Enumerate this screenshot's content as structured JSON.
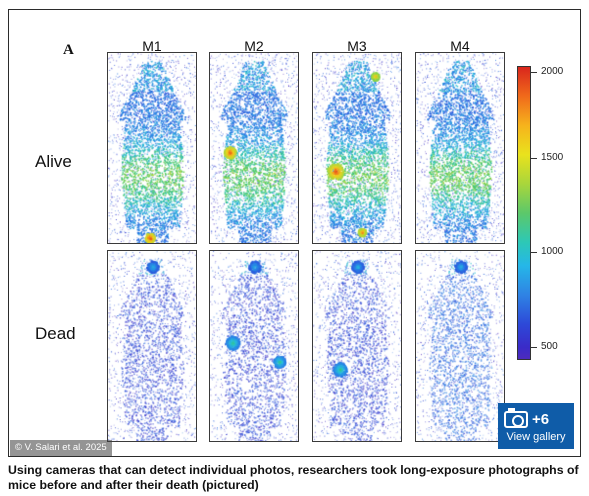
{
  "figure": {
    "panel_letter": "A",
    "columns": [
      "M1",
      "M2",
      "M3",
      "M4"
    ],
    "rows": [
      "Alive",
      "Dead"
    ],
    "colorbar": {
      "ticks": [
        "2000",
        "1500",
        "1000",
        "500"
      ],
      "range": [
        500,
        2000
      ],
      "colors": [
        "#d9261c",
        "#f6b31c",
        "#e9e21d",
        "#5cc86a",
        "#25b7e8",
        "#2d49d8",
        "#4d2bbd"
      ]
    },
    "credit": "© V. Salari et al. 2025"
  },
  "gallery_button": {
    "count": "+6",
    "label": "View gallery",
    "icon": "camera-icon",
    "color": "#0f5ca8"
  },
  "caption": "Using cameras that can detect individual photos, researchers took long-exposure photographs of mice before and after their death (pictured)"
}
